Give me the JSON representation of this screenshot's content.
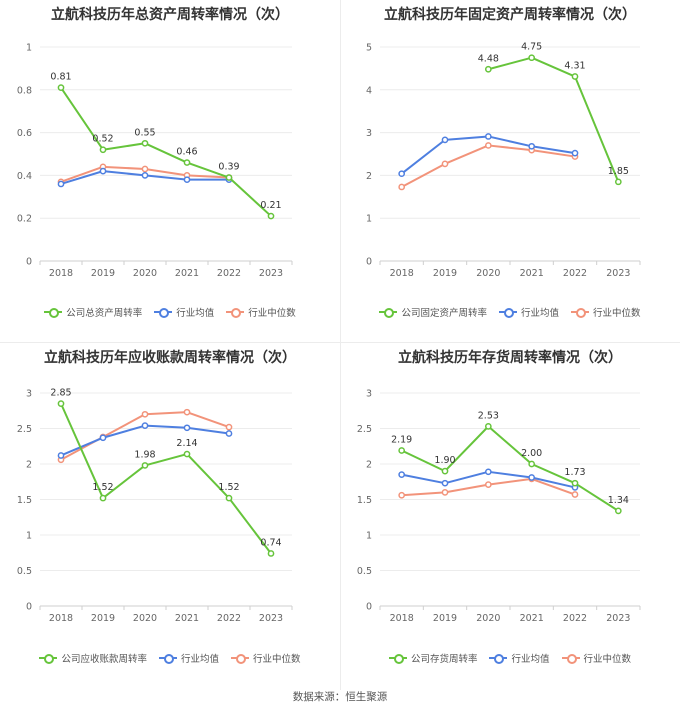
{
  "colors": {
    "company": "#66c43b",
    "avg": "#4e7fe0",
    "median": "#f2937a"
  },
  "source_text": "数据来源：恒生聚源",
  "chart_data": [
    {
      "type": "line",
      "title": "立航科技历年总资产周转率情况（次）",
      "x": [
        "2018",
        "2019",
        "2020",
        "2021",
        "2022",
        "2023"
      ],
      "ylim": [
        0,
        1
      ],
      "yticks": [
        "0",
        "0.2",
        "0.4",
        "0.6",
        "0.8",
        "1"
      ],
      "series": [
        {
          "name": "公司总资产周转率",
          "role": "company",
          "values": [
            0.81,
            0.52,
            0.55,
            0.46,
            0.39,
            0.21
          ],
          "labels": [
            "0.81",
            "0.52",
            "0.55",
            "0.46",
            "0.39",
            "0.21"
          ]
        },
        {
          "name": "行业均值",
          "role": "avg",
          "values": [
            0.36,
            0.42,
            0.4,
            0.38,
            0.38,
            null
          ]
        },
        {
          "name": "行业中位数",
          "role": "median",
          "values": [
            0.37,
            0.44,
            0.43,
            0.4,
            0.39,
            null
          ]
        }
      ]
    },
    {
      "type": "line",
      "title": "立航科技历年固定资产周转率情况（次）",
      "x": [
        "2018",
        "2019",
        "2020",
        "2021",
        "2022",
        "2023"
      ],
      "ylim": [
        0,
        5
      ],
      "yticks": [
        "0",
        "1",
        "2",
        "3",
        "4",
        "5"
      ],
      "series": [
        {
          "name": "公司固定资产周转率",
          "role": "company",
          "values": [
            null,
            null,
            4.48,
            4.75,
            4.31,
            1.85
          ],
          "labels": [
            null,
            null,
            "4.48",
            "4.75",
            "4.31",
            "1.85"
          ]
        },
        {
          "name": "行业均值",
          "role": "avg",
          "values": [
            2.04,
            2.83,
            2.91,
            2.68,
            2.52,
            null
          ]
        },
        {
          "name": "行业中位数",
          "role": "median",
          "values": [
            1.73,
            2.27,
            2.7,
            2.59,
            2.44,
            null
          ]
        }
      ]
    },
    {
      "type": "line",
      "title": "立航科技历年应收账款周转率情况（次）",
      "x": [
        "2018",
        "2019",
        "2020",
        "2021",
        "2022",
        "2023"
      ],
      "ylim": [
        0,
        3
      ],
      "yticks": [
        "0",
        "0.5",
        "1",
        "1.5",
        "2",
        "2.5",
        "3"
      ],
      "series": [
        {
          "name": "公司应收账款周转率",
          "role": "company",
          "values": [
            2.85,
            1.52,
            1.98,
            2.14,
            1.52,
            0.74
          ],
          "labels": [
            "2.85",
            "1.52",
            "1.98",
            "2.14",
            "1.52",
            "0.74"
          ]
        },
        {
          "name": "行业均值",
          "role": "avg",
          "values": [
            2.12,
            2.37,
            2.54,
            2.51,
            2.43,
            null
          ]
        },
        {
          "name": "行业中位数",
          "role": "median",
          "values": [
            2.06,
            2.38,
            2.7,
            2.73,
            2.52,
            null
          ]
        }
      ]
    },
    {
      "type": "line",
      "title": "立航科技历年存货周转率情况（次）",
      "x": [
        "2018",
        "2019",
        "2020",
        "2021",
        "2022",
        "2023"
      ],
      "ylim": [
        0,
        3
      ],
      "yticks": [
        "0",
        "0.5",
        "1",
        "1.5",
        "2",
        "2.5",
        "3"
      ],
      "series": [
        {
          "name": "公司存货周转率",
          "role": "company",
          "values": [
            2.19,
            1.9,
            2.53,
            2.0,
            1.73,
            1.34
          ],
          "labels": [
            "2.19",
            "1.90",
            "2.53",
            "2.00",
            "1.73",
            "1.34"
          ]
        },
        {
          "name": "行业均值",
          "role": "avg",
          "values": [
            1.85,
            1.73,
            1.89,
            1.81,
            1.67,
            null
          ]
        },
        {
          "name": "行业中位数",
          "role": "median",
          "values": [
            1.56,
            1.6,
            1.71,
            1.79,
            1.57,
            null
          ]
        }
      ]
    }
  ]
}
